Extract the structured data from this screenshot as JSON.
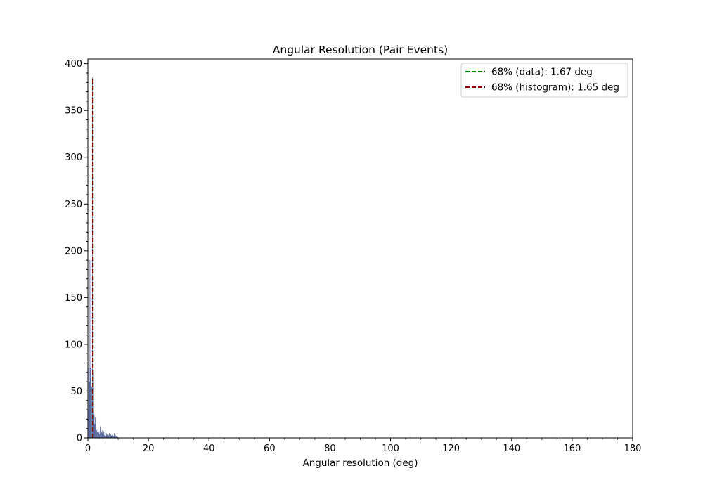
{
  "chart_data": {
    "type": "bar",
    "title": "Angular Resolution (Pair Events)",
    "xlabel": "Angular resolution (deg)",
    "ylabel": "",
    "xlim": [
      0,
      180
    ],
    "ylim": [
      0,
      405
    ],
    "xticks": [
      0,
      20,
      40,
      60,
      80,
      100,
      120,
      140,
      160,
      180
    ],
    "yticks": [
      0,
      50,
      100,
      150,
      200,
      250,
      300,
      350,
      400
    ],
    "grid": false,
    "legend_position": "top-right",
    "bar_color": "#3a4a8c",
    "histogram": {
      "bin_width": 0.2,
      "bin_starts": [
        0.0,
        0.2,
        0.4,
        0.6,
        0.8,
        1.0,
        1.2,
        1.4,
        1.6,
        1.8,
        2.0,
        2.2,
        2.4,
        2.6,
        2.8,
        3.0,
        3.2,
        3.4,
        3.6,
        3.8,
        4.0,
        4.2,
        4.4,
        4.6,
        4.8,
        5.0,
        5.2,
        5.4,
        5.6,
        5.8,
        6.0,
        6.2,
        6.4,
        6.6,
        6.8,
        7.0,
        7.2,
        7.4,
        7.6,
        7.8,
        8.0,
        8.2,
        8.4,
        8.6,
        8.8,
        9.0,
        9.2,
        9.4,
        9.6,
        9.8
      ],
      "counts": [
        30,
        75,
        60,
        190,
        75,
        230,
        55,
        385,
        40,
        70,
        25,
        15,
        22,
        10,
        8,
        6,
        9,
        5,
        7,
        4,
        12,
        10,
        6,
        8,
        5,
        4,
        7,
        3,
        6,
        2,
        5,
        3,
        4,
        2,
        3,
        5,
        2,
        4,
        3,
        2,
        4,
        3,
        2,
        5,
        2,
        3,
        1,
        2,
        1,
        1
      ]
    },
    "series": [
      {
        "name": "68% (data): 1.67 deg",
        "type": "vline",
        "x": 1.67,
        "y_range": [
          0,
          380
        ],
        "color": "#008000",
        "style": "dashed"
      },
      {
        "name": "68% (histogram): 1.65 deg",
        "type": "vline",
        "x": 1.65,
        "y_range": [
          0,
          385
        ],
        "color": "#8b0000",
        "style": "dashed"
      }
    ]
  }
}
